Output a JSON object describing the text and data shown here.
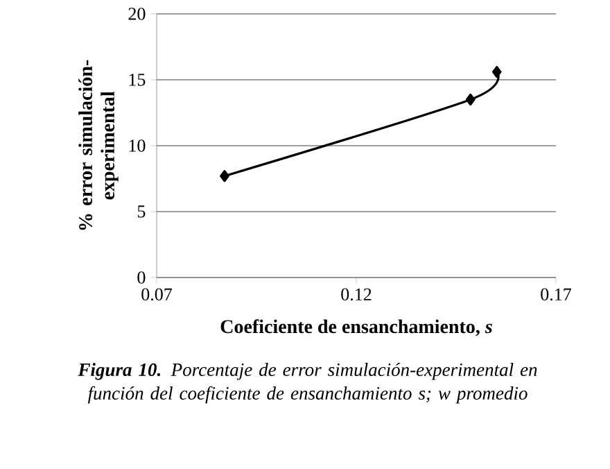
{
  "chart_data": {
    "type": "line",
    "title": "**Figura 10.** Porcentaje de error simulación-experimental en función del coeficiente de ensanchamiento s; w promedio",
    "xlabel": "Coeficiente de ensanchamiento, *s*",
    "ylabel": "% error simulación-experimental",
    "x": [
      0.087,
      0.1486,
      0.1552
    ],
    "series": [
      {
        "color": "#000000",
        "values": [
          7.7,
          13.5,
          15.6
        ]
      }
    ],
    "xlim": [
      0.07,
      0.17
    ],
    "xticks": [
      0.07,
      0.12,
      0.17
    ],
    "ylim": [
      0,
      20
    ],
    "yticks": [
      0,
      5,
      10,
      15,
      20
    ],
    "grid": "y",
    "marker": "diamond",
    "line_style": "solid"
  }
}
